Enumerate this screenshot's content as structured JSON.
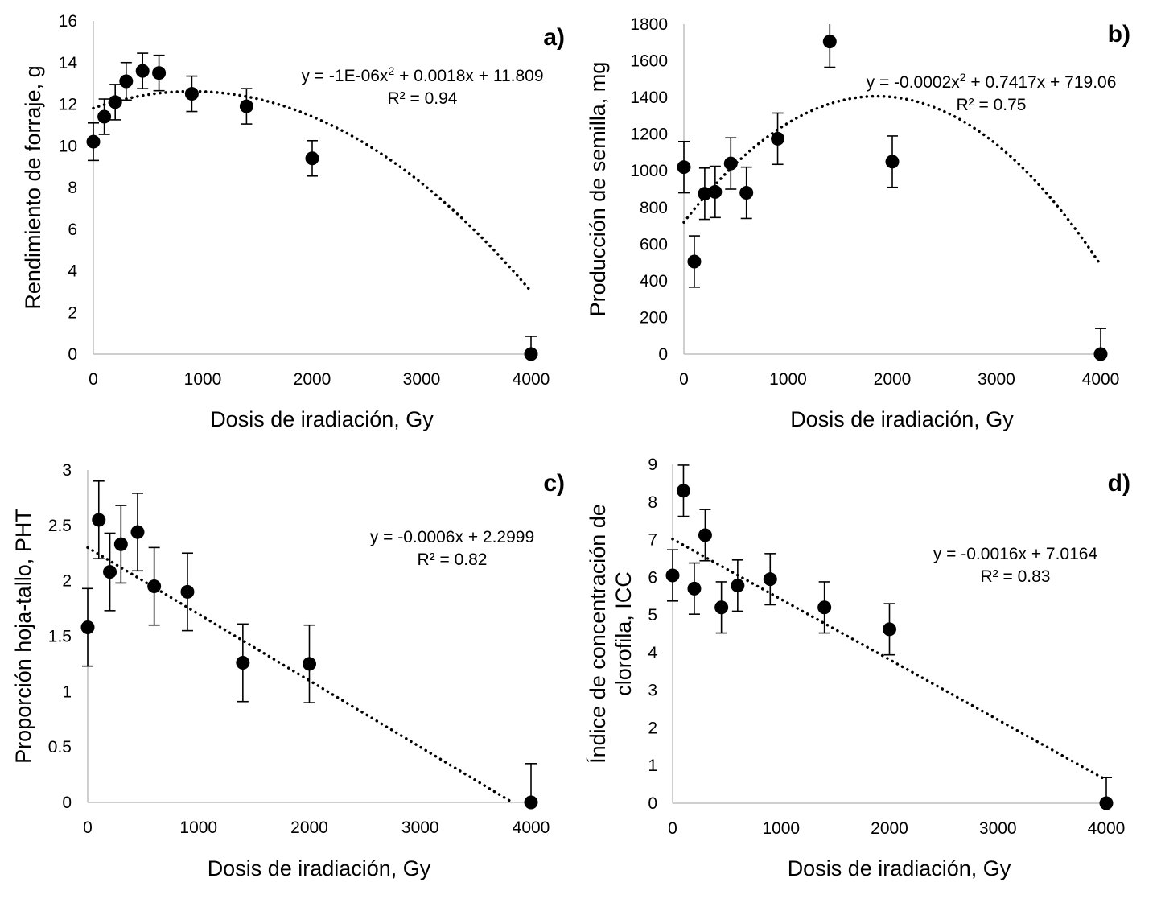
{
  "chart_data": [
    {
      "id": "a",
      "type": "scatter",
      "panel_label": "a)",
      "xlabel": "Dosis de iradiación, Gy",
      "ylabel": "Rendimiento de forraje, g",
      "xlim": [
        0,
        4000
      ],
      "ylim": [
        0,
        16
      ],
      "xticks": [
        0,
        1000,
        2000,
        3000,
        4000
      ],
      "yticks": [
        0,
        2,
        4,
        6,
        8,
        10,
        12,
        14,
        16
      ],
      "points": [
        {
          "x": 0,
          "y": 10.2,
          "err": 0.9
        },
        {
          "x": 100,
          "y": 11.4,
          "err": 0.85
        },
        {
          "x": 200,
          "y": 12.1,
          "err": 0.85
        },
        {
          "x": 300,
          "y": 13.1,
          "err": 0.9
        },
        {
          "x": 450,
          "y": 13.6,
          "err": 0.85
        },
        {
          "x": 600,
          "y": 13.5,
          "err": 0.85
        },
        {
          "x": 900,
          "y": 12.5,
          "err": 0.85
        },
        {
          "x": 1400,
          "y": 11.9,
          "err": 0.85
        },
        {
          "x": 2000,
          "y": 9.4,
          "err": 0.85
        },
        {
          "x": 4000,
          "y": 0,
          "err": 0.85
        }
      ],
      "trendline": {
        "type": "poly2",
        "a": -1e-06,
        "b": 0.0018,
        "c": 11.809
      },
      "equation": {
        "prefix": "y = -1E-06x",
        "superscript": "2",
        "suffix": " + 0.0018x + 11.809",
        "r2": "R² = 0.94"
      }
    },
    {
      "id": "b",
      "type": "scatter",
      "panel_label": "b)",
      "xlabel": "Dosis de iradiación, Gy",
      "ylabel": "Producción de semilla, mg",
      "xlim": [
        0,
        4000
      ],
      "ylim": [
        0,
        1800
      ],
      "xticks": [
        0,
        1000,
        2000,
        3000,
        4000
      ],
      "yticks": [
        0,
        200,
        400,
        600,
        800,
        1000,
        1200,
        1400,
        1600,
        1800
      ],
      "points": [
        {
          "x": 0,
          "y": 1020,
          "err": 140
        },
        {
          "x": 100,
          "y": 505,
          "err": 140
        },
        {
          "x": 200,
          "y": 875,
          "err": 140
        },
        {
          "x": 300,
          "y": 885,
          "err": 140
        },
        {
          "x": 450,
          "y": 1040,
          "err": 140
        },
        {
          "x": 600,
          "y": 880,
          "err": 140
        },
        {
          "x": 900,
          "y": 1175,
          "err": 140
        },
        {
          "x": 1400,
          "y": 1705,
          "err": 140
        },
        {
          "x": 2000,
          "y": 1050,
          "err": 140
        },
        {
          "x": 4000,
          "y": 0,
          "err": 140
        }
      ],
      "trendline": {
        "type": "poly2",
        "a": -0.0002,
        "b": 0.7417,
        "c": 719.06
      },
      "equation": {
        "prefix": "y = -0.0002x",
        "superscript": "2",
        "suffix": " + 0.7417x + 719.06",
        "r2": "R² = 0.75"
      }
    },
    {
      "id": "c",
      "type": "scatter",
      "panel_label": "c)",
      "xlabel": "Dosis de iradiación, Gy",
      "ylabel": "Proporción hoja-tallo, PHT",
      "xlim": [
        0,
        4000
      ],
      "ylim": [
        0,
        3
      ],
      "xticks": [
        0,
        1000,
        2000,
        3000,
        4000
      ],
      "yticks": [
        0,
        0.5,
        1,
        1.5,
        2,
        2.5,
        3
      ],
      "points": [
        {
          "x": 0,
          "y": 1.58,
          "err": 0.35
        },
        {
          "x": 100,
          "y": 2.55,
          "err": 0.35
        },
        {
          "x": 200,
          "y": 2.08,
          "err": 0.35
        },
        {
          "x": 300,
          "y": 2.33,
          "err": 0.35
        },
        {
          "x": 450,
          "y": 2.44,
          "err": 0.35
        },
        {
          "x": 600,
          "y": 1.95,
          "err": 0.35
        },
        {
          "x": 900,
          "y": 1.9,
          "err": 0.35
        },
        {
          "x": 1400,
          "y": 1.26,
          "err": 0.35
        },
        {
          "x": 2000,
          "y": 1.25,
          "err": 0.35
        },
        {
          "x": 4000,
          "y": 0,
          "err": 0.35
        }
      ],
      "trendline": {
        "type": "linear",
        "m": -0.0006,
        "b": 2.2999
      },
      "equation": {
        "prefix": "y = -0.0006x + 2.2999",
        "superscript": "",
        "suffix": "",
        "r2": "R² = 0.82"
      }
    },
    {
      "id": "d",
      "type": "scatter",
      "panel_label": "d)",
      "xlabel": "Dosis de iradiación, Gy",
      "ylabel": "Índice de concentración de clorofila, ICC",
      "ylabel_lines": [
        "Índice de concentración de",
        "clorofila, ICC"
      ],
      "xlim": [
        0,
        4000
      ],
      "ylim": [
        0,
        9
      ],
      "xticks": [
        0,
        1000,
        2000,
        3000,
        4000
      ],
      "yticks": [
        0,
        1,
        2,
        3,
        4,
        5,
        6,
        7,
        8,
        9
      ],
      "points": [
        {
          "x": 0,
          "y": 6.05,
          "err": 0.68
        },
        {
          "x": 100,
          "y": 8.3,
          "err": 0.68
        },
        {
          "x": 200,
          "y": 5.7,
          "err": 0.68
        },
        {
          "x": 300,
          "y": 7.12,
          "err": 0.68
        },
        {
          "x": 450,
          "y": 5.2,
          "err": 0.68
        },
        {
          "x": 600,
          "y": 5.78,
          "err": 0.68
        },
        {
          "x": 900,
          "y": 5.95,
          "err": 0.68
        },
        {
          "x": 1400,
          "y": 5.2,
          "err": 0.68
        },
        {
          "x": 2000,
          "y": 4.62,
          "err": 0.68
        },
        {
          "x": 4000,
          "y": 0,
          "err": 0.68
        }
      ],
      "trendline": {
        "type": "linear",
        "m": -0.0016,
        "b": 7.0164
      },
      "equation": {
        "prefix": "y = -0.0016x + 7.0164",
        "superscript": "",
        "suffix": "",
        "r2": "R² = 0.83"
      }
    }
  ]
}
